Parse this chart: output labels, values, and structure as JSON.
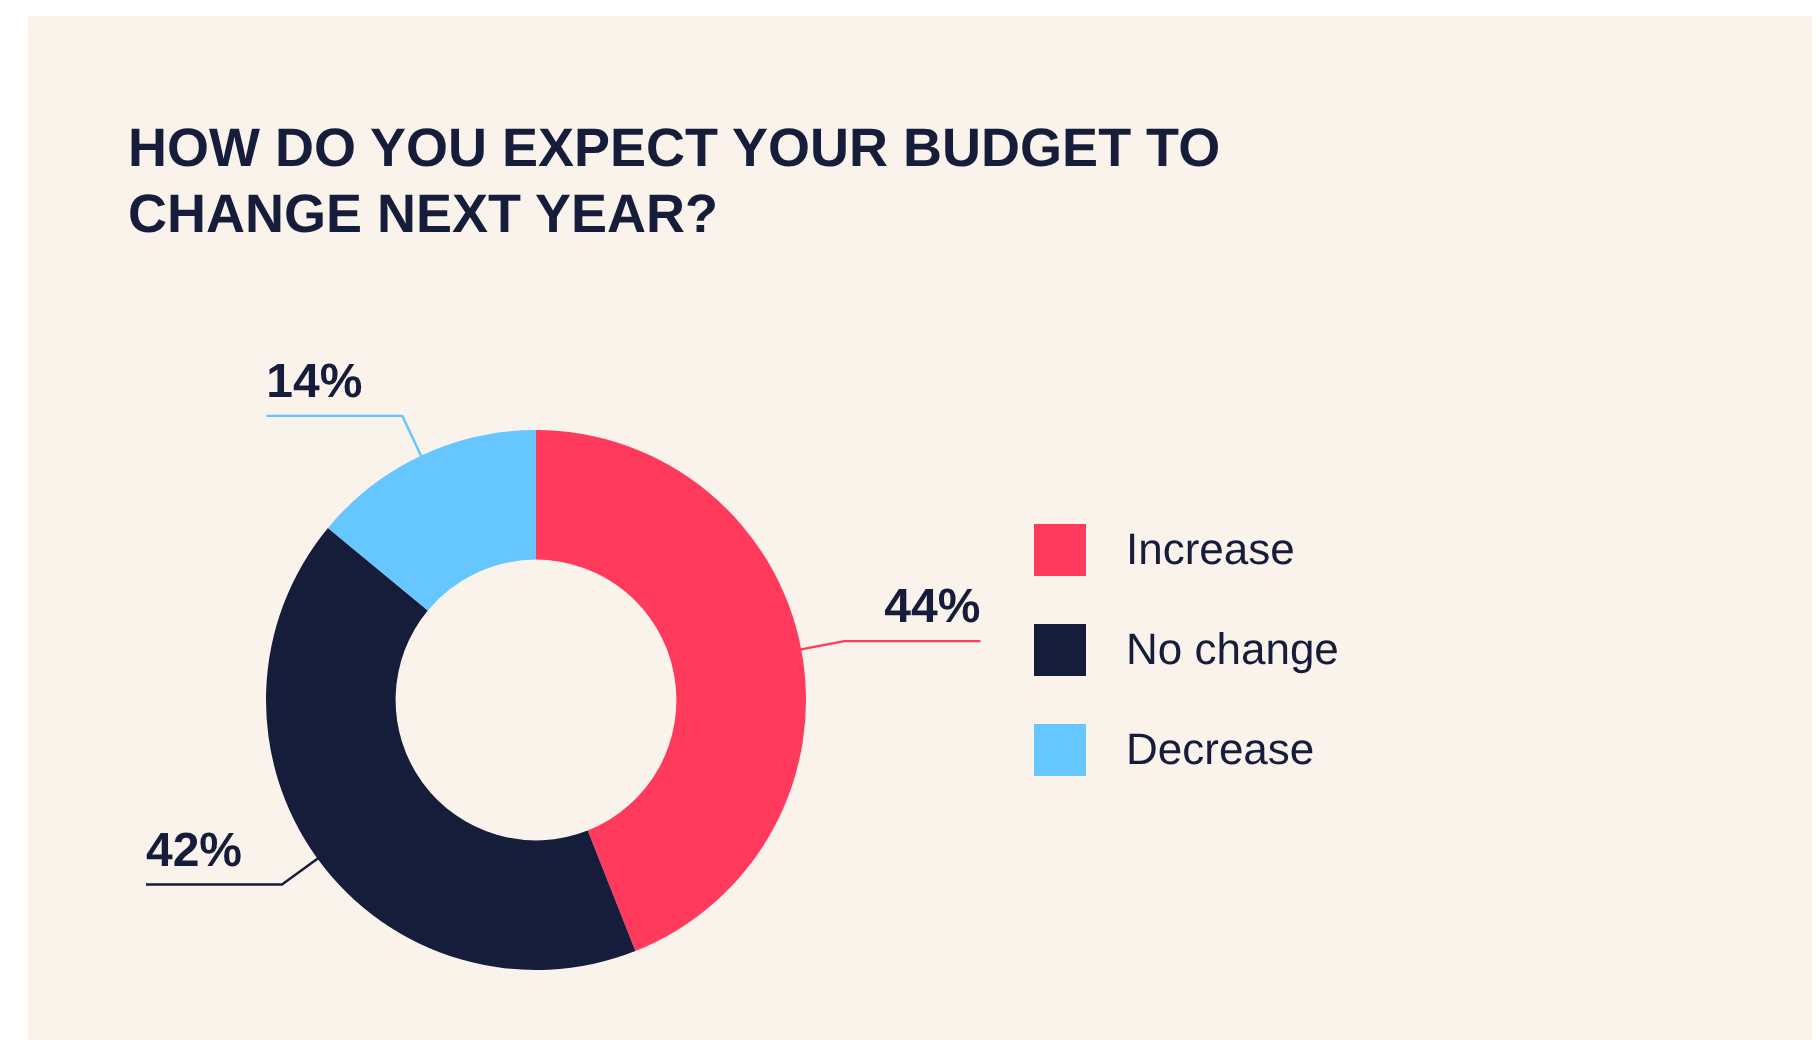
{
  "chart_data": {
    "type": "donut",
    "title": "HOW DO YOU EXPECT YOUR BUDGET TO CHANGE NEXT YEAR?",
    "categories": [
      "Increase",
      "No change",
      "Decrease"
    ],
    "values": [
      44,
      42,
      14
    ],
    "colors": [
      "#ff3a5c",
      "#161d3a",
      "#66c6ff"
    ],
    "value_labels": [
      "44%",
      "42%",
      "14%"
    ],
    "legend": "right"
  }
}
